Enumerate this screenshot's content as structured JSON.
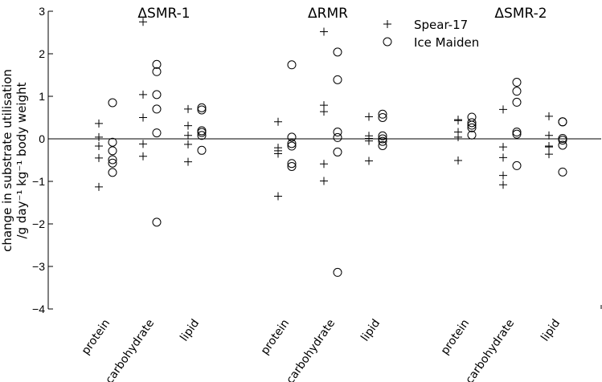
{
  "chart_data": {
    "type": "scatter",
    "ylabel_lines": [
      "change in substrate utilisation",
      "/g day⁻¹ kg⁻¹ body weight"
    ],
    "ylim": [
      -4,
      3
    ],
    "yticks": [
      -4,
      -3,
      -2,
      -1,
      0,
      1,
      2,
      3
    ],
    "grid": false,
    "reference_line_y": 0,
    "legend_position": "top-center-right",
    "categories": [
      "protein",
      "carbohydrate",
      "lipid"
    ],
    "panels": [
      {
        "title": "ΔSMR-1",
        "groups": [
          {
            "category": "protein",
            "Spear-17": [
              0.36,
              0.04,
              -0.17,
              -0.45,
              -1.13
            ],
            "Ice Maiden": [
              0.85,
              -0.08,
              -0.28,
              -0.49,
              -0.57,
              -0.79
            ]
          },
          {
            "category": "carbohydrate",
            "Spear-17": [
              2.75,
              1.04,
              0.5,
              -0.12,
              -0.41
            ],
            "Ice Maiden": [
              1.75,
              1.58,
              1.04,
              0.7,
              0.14,
              -1.96
            ]
          },
          {
            "category": "lipid",
            "Spear-17": [
              0.7,
              0.31,
              0.08,
              -0.13,
              -0.54
            ],
            "Ice Maiden": [
              0.73,
              0.68,
              0.19,
              0.15,
              0.08,
              -0.27
            ]
          }
        ]
      },
      {
        "title": "ΔRMR",
        "groups": [
          {
            "category": "protein",
            "Spear-17": [
              0.4,
              -0.21,
              -0.28,
              -0.35,
              -1.35
            ],
            "Ice Maiden": [
              1.74,
              0.04,
              -0.11,
              -0.17,
              -0.58,
              -0.65
            ]
          },
          {
            "category": "carbohydrate",
            "Spear-17": [
              2.52,
              0.79,
              0.64,
              -0.59,
              -0.99
            ],
            "Ice Maiden": [
              2.04,
              1.39,
              0.16,
              0.03,
              -0.31,
              -3.14
            ]
          },
          {
            "category": "lipid",
            "Spear-17": [
              0.52,
              0.07,
              0.01,
              -0.05,
              -0.52
            ],
            "Ice Maiden": [
              0.58,
              0.5,
              0.07,
              0.0,
              -0.06,
              -0.16
            ]
          }
        ]
      },
      {
        "title": "ΔSMR-2",
        "groups": [
          {
            "category": "protein",
            "Spear-17": [
              0.45,
              0.43,
              0.16,
              0.04,
              -0.51
            ],
            "Ice Maiden": [
              0.51,
              0.38,
              0.32,
              0.26,
              0.09
            ]
          },
          {
            "category": "carbohydrate",
            "Spear-17": [
              0.69,
              -0.19,
              -0.44,
              -0.86,
              -1.08
            ],
            "Ice Maiden": [
              1.33,
              1.12,
              0.86,
              0.16,
              0.11,
              -0.63
            ]
          },
          {
            "category": "lipid",
            "Spear-17": [
              0.53,
              0.08,
              -0.17,
              -0.19,
              -0.36
            ],
            "Ice Maiden": [
              0.4,
              0.4,
              0.01,
              -0.03,
              -0.15,
              -0.78
            ]
          }
        ]
      }
    ],
    "series": [
      {
        "name": "Spear-17",
        "marker": "plus",
        "color": "#000000"
      },
      {
        "name": "Ice Maiden",
        "marker": "circle",
        "color": "#000000"
      }
    ]
  }
}
